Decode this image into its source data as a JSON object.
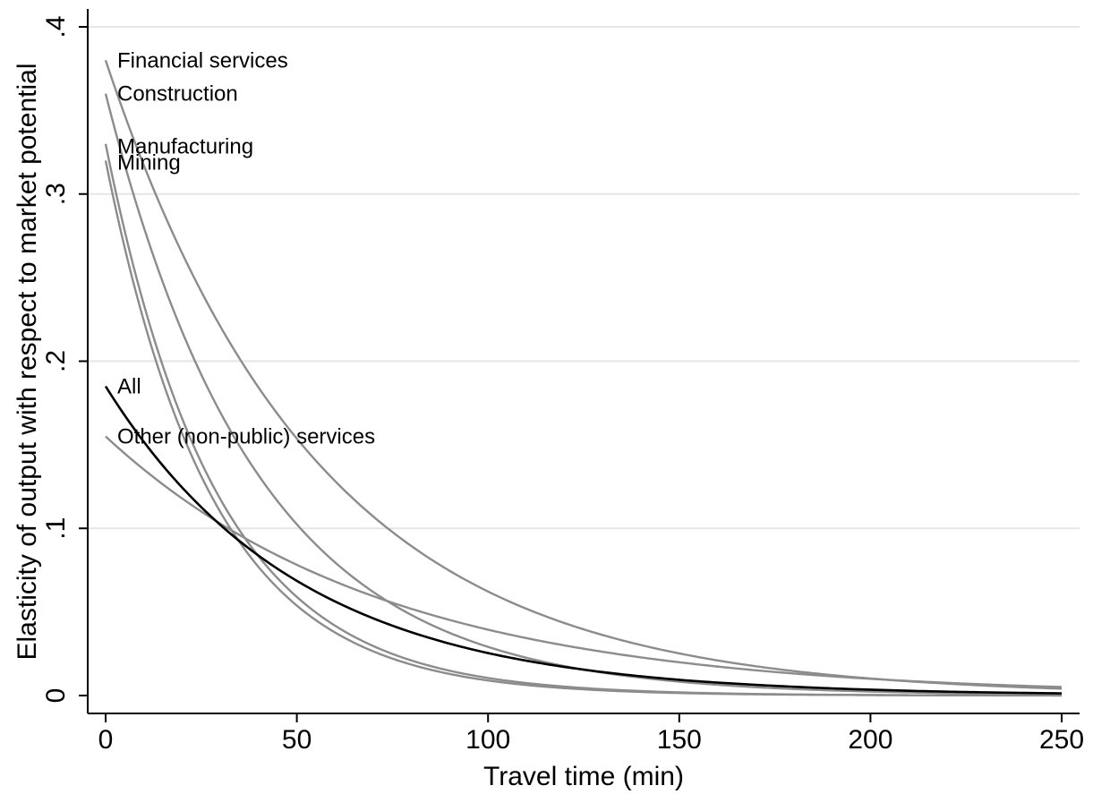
{
  "chart_data": {
    "type": "line",
    "title": "",
    "xlabel": "Travel time (min)",
    "ylabel": "Elasticity of output with respect to market potential",
    "xlim": [
      0,
      250
    ],
    "ylim": [
      0,
      0.4
    ],
    "x_ticks": [
      0,
      50,
      100,
      150,
      200,
      250
    ],
    "x_tick_labels": [
      "0",
      "50",
      "100",
      "150",
      "200",
      "250"
    ],
    "y_ticks": [
      0,
      0.1,
      0.2,
      0.3,
      0.4
    ],
    "y_tick_labels": [
      "0",
      ".1",
      ".2",
      ".3",
      ".4"
    ],
    "grid": "horizontal",
    "legend": "none",
    "x": [
      0,
      25,
      50,
      75,
      100,
      125,
      150,
      175,
      200,
      225,
      250
    ],
    "series": [
      {
        "name": "Financial services",
        "color": "#8c8c8c",
        "values": [
          0.38,
          0.2417,
          0.1537,
          0.0978,
          0.0622,
          0.0396,
          0.0252,
          0.016,
          0.0102,
          0.0065,
          0.0041
        ]
      },
      {
        "name": "Construction",
        "color": "#8c8c8c",
        "values": [
          0.36,
          0.192,
          0.1024,
          0.0546,
          0.0291,
          0.0155,
          0.0083,
          0.0044,
          0.0024,
          0.0013,
          0.0007
        ]
      },
      {
        "name": "Manufacturing",
        "color": "#8c8c8c",
        "values": [
          0.33,
          0.1395,
          0.059,
          0.0249,
          0.0105,
          0.0045,
          0.0019,
          0.0008,
          0.0003,
          0.0001,
          0.0001
        ]
      },
      {
        "name": "Mining",
        "color": "#8c8c8c",
        "values": [
          0.32,
          0.1312,
          0.0538,
          0.0221,
          0.009,
          0.0037,
          0.0015,
          0.0006,
          0.0003,
          0.0001,
          0.0
        ]
      },
      {
        "name": "All",
        "color": "#000000",
        "values": [
          0.185,
          0.1127,
          0.0686,
          0.0418,
          0.0254,
          0.0155,
          0.0094,
          0.0058,
          0.0035,
          0.0021,
          0.0013
        ]
      },
      {
        "name": "Other (non-public) services",
        "color": "#8c8c8c",
        "values": [
          0.155,
          0.1101,
          0.0782,
          0.0555,
          0.0394,
          0.028,
          0.0199,
          0.0141,
          0.01,
          0.0071,
          0.0051
        ]
      }
    ]
  }
}
